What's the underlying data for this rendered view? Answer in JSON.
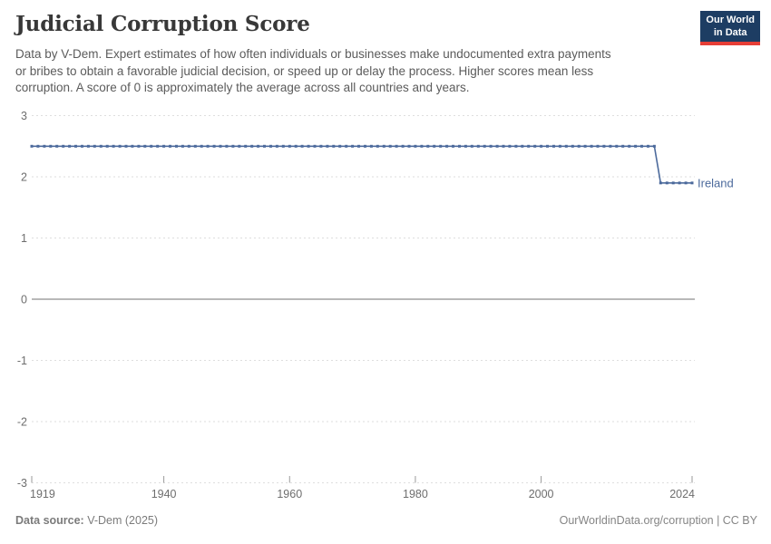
{
  "header": {
    "title": "Judicial Corruption Score",
    "subtitle": "Data by V-Dem. Expert estimates of how often individuals or businesses make undocumented extra payments\nor bribes to obtain a favorable judicial decision, or speed up or delay the process. Higher scores mean less\ncorruption. A score of 0 is approximately the average across all countries and years.",
    "logo": {
      "line1": "Our World",
      "line2": "in Data",
      "bg_color": "#1d3d63",
      "accent_color": "#e63e36"
    }
  },
  "footer": {
    "data_source_label": "Data source:",
    "data_source_value": "V-Dem (2025)",
    "attribution": "OurWorldinData.org/corruption | CC BY"
  },
  "chart_data": {
    "type": "line",
    "title": "Judicial Corruption Score",
    "xlabel": "",
    "ylabel": "",
    "x_range": [
      1919,
      2024
    ],
    "y_range": [
      -3,
      3
    ],
    "x_ticks": [
      1919,
      1940,
      1960,
      1980,
      2000,
      2024
    ],
    "y_ticks": [
      3,
      2,
      1,
      0,
      -1,
      -2,
      -3
    ],
    "grid": "horizontal dashed gridlines; solid gray line at y=0",
    "legend_position": "label at right end of line",
    "marker": "small square at every yearly data point",
    "series": [
      {
        "name": "Ireland",
        "color": "#4C6A9C",
        "step_years": 1,
        "segments": [
          {
            "from_year": 1919,
            "to_year": 2018,
            "value": 2.5
          },
          {
            "from_year": 2019,
            "to_year": 2024,
            "value": 1.9
          }
        ]
      }
    ]
  }
}
